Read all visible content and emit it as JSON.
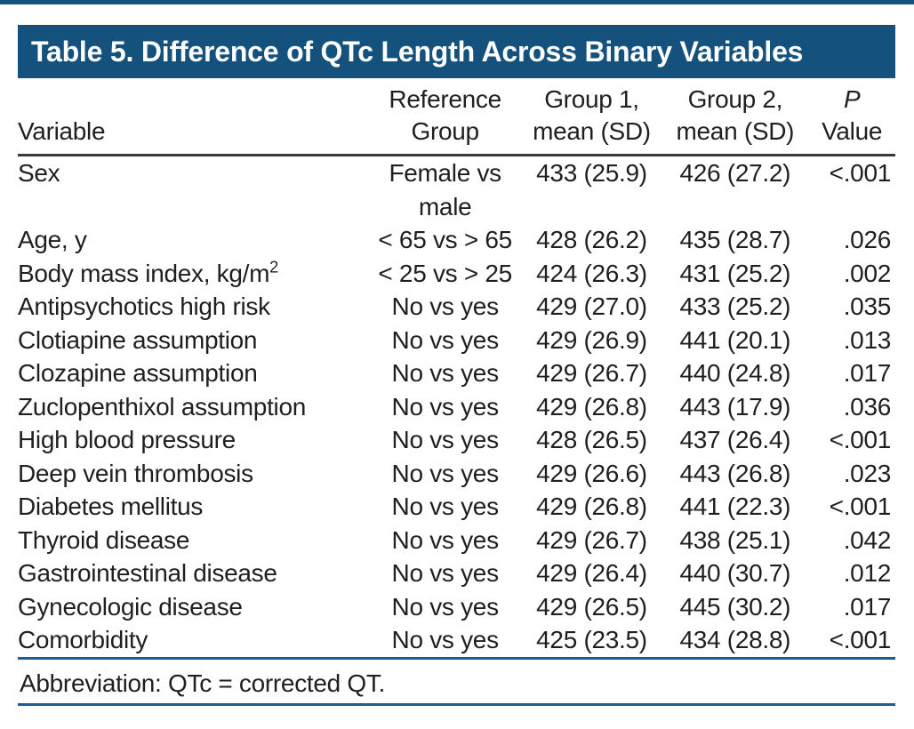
{
  "colors": {
    "header_bar": "#14527d",
    "top_rule": "#14527d",
    "blue_rule": "#1c5e92",
    "header_underline": "#3a3a3a",
    "text": "#1f1f1f",
    "title_text": "#ffffff"
  },
  "title_bar": {
    "label": "Table 5. Difference of QTc Length Across Binary Variables"
  },
  "table": {
    "headers": {
      "variable": {
        "label": "Variable"
      },
      "reference": {
        "line1": "Reference",
        "line2": "Group"
      },
      "group1": {
        "line1": "Group 1,",
        "line2": "mean (SD)"
      },
      "group2": {
        "line1": "Group 2,",
        "line2": "mean (SD)"
      },
      "p": {
        "line1": "P",
        "line2": "Value"
      }
    },
    "rows": [
      {
        "variable": "Sex",
        "reference": "Female vs male",
        "group1": "433 (25.9)",
        "group2": "426 (27.2)",
        "p": "<.001"
      },
      {
        "variable": "Age, y",
        "reference": "< 65 vs > 65",
        "group1": "428 (26.2)",
        "group2": "435 (28.7)",
        "p": ".026"
      },
      {
        "variable": "Body mass index, kg/m²",
        "reference": "< 25 vs > 25",
        "group1": "424 (26.3)",
        "group2": "431 (25.2)",
        "p": ".002"
      },
      {
        "variable": "Antipsychotics high risk",
        "reference": "No vs yes",
        "group1": "429 (27.0)",
        "group2": "433 (25.2)",
        "p": ".035"
      },
      {
        "variable": "Clotiapine assumption",
        "reference": "No vs yes",
        "group1": "429 (26.9)",
        "group2": "441 (20.1)",
        "p": ".013"
      },
      {
        "variable": "Clozapine assumption",
        "reference": "No vs yes",
        "group1": "429 (26.7)",
        "group2": "440 (24.8)",
        "p": ".017"
      },
      {
        "variable": "Zuclopenthixol assumption",
        "reference": "No vs yes",
        "group1": "429 (26.8)",
        "group2": "443 (17.9)",
        "p": ".036"
      },
      {
        "variable": "High blood pressure",
        "reference": "No vs yes",
        "group1": "428 (26.5)",
        "group2": "437 (26.4)",
        "p": "<.001"
      },
      {
        "variable": "Deep vein thrombosis",
        "reference": "No vs yes",
        "group1": "429 (26.6)",
        "group2": "443 (26.8)",
        "p": ".023"
      },
      {
        "variable": "Diabetes mellitus",
        "reference": "No vs yes",
        "group1": "429 (26.8)",
        "group2": "441 (22.3)",
        "p": "<.001"
      },
      {
        "variable": "Thyroid disease",
        "reference": "No vs yes",
        "group1": "429 (26.7)",
        "group2": "438 (25.1)",
        "p": ".042"
      },
      {
        "variable": "Gastrointestinal disease",
        "reference": "No vs yes",
        "group1": "429 (26.4)",
        "group2": "440 (30.7)",
        "p": ".012"
      },
      {
        "variable": "Gynecologic disease",
        "reference": "No vs yes",
        "group1": "429 (26.5)",
        "group2": "445 (30.2)",
        "p": ".017"
      },
      {
        "variable": "Comorbidity",
        "reference": "No vs yes",
        "group1": "425 (23.5)",
        "group2": "434 (28.8)",
        "p": "<.001"
      }
    ]
  },
  "footnote": {
    "text": "Abbreviation: QTc = corrected QT."
  }
}
